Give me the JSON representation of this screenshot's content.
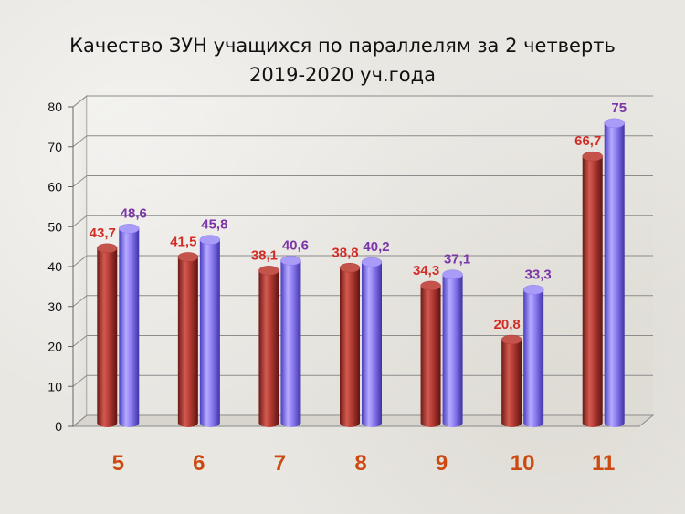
{
  "chart_data": {
    "type": "bar",
    "title_line1": "Качество ЗУН учащихся по параллелям за 2 четверть",
    "title_line2": "2019-2020 уч.года",
    "categories": [
      "5",
      "6",
      "7",
      "8",
      "9",
      "10",
      "11"
    ],
    "series": [
      {
        "values": [
          43.7,
          41.5,
          38.1,
          38.8,
          34.3,
          20.8,
          66.7
        ],
        "labels": [
          "43,7",
          "41,5",
          "38,1",
          "38,8",
          "34,3",
          "20,8",
          "66,7"
        ],
        "color": "#b23a33",
        "label_color": "#d12d26"
      },
      {
        "values": [
          48.6,
          45.8,
          40.6,
          40.2,
          37.1,
          33.3,
          75
        ],
        "labels": [
          "48,6",
          "45,8",
          "40,6",
          "40,2",
          "37,1",
          "33,3",
          "75"
        ],
        "color": "#8c7cf0",
        "label_color": "#7a35a8"
      }
    ],
    "ylim": [
      0,
      80
    ],
    "yticks": [
      "0",
      "10",
      "20",
      "30",
      "40",
      "50",
      "60",
      "70",
      "80"
    ],
    "grid": true,
    "legend": "none",
    "category_color": "#cc4a12"
  }
}
